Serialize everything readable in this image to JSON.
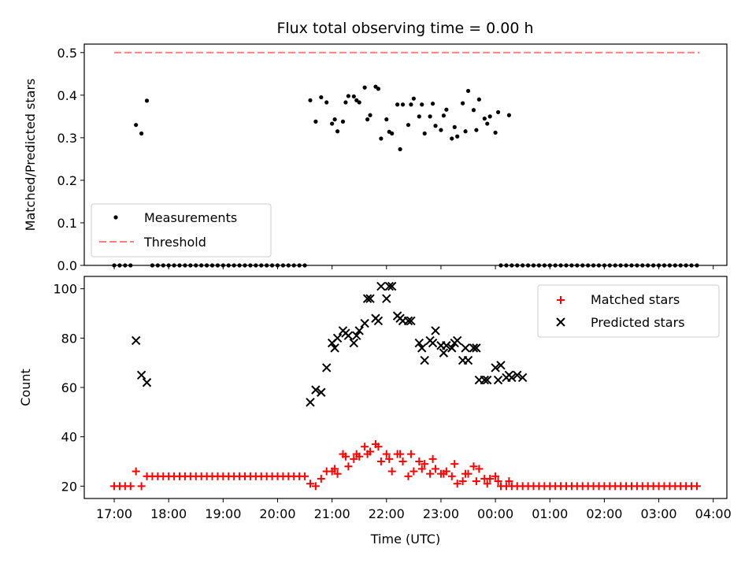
{
  "chart_data": [
    {
      "type": "scatter",
      "title": "Flux total observing time = 0.00 h",
      "xlabel": "",
      "ylabel": "Matched/Predicted stars",
      "ylim": [
        0,
        0.52
      ],
      "yticks": [
        "0.0",
        "0.1",
        "0.2",
        "0.3",
        "0.4",
        "0.5"
      ],
      "legend_position": "lower-left",
      "threshold": {
        "name": "Threshold",
        "value": 0.5,
        "x_start": 17.0,
        "x_end": 27.75,
        "color": "#ff7f7f"
      },
      "series": [
        {
          "name": "Measurements",
          "color": "#000000",
          "x": [
            17.0,
            17.1,
            17.2,
            17.3,
            17.4,
            17.5,
            17.6,
            17.7,
            17.8,
            17.9,
            18.0,
            18.1,
            18.2,
            18.3,
            18.4,
            18.5,
            18.6,
            18.7,
            18.8,
            18.9,
            19.0,
            19.1,
            19.2,
            19.3,
            19.4,
            19.5,
            19.6,
            19.7,
            19.8,
            19.9,
            20.0,
            20.1,
            20.2,
            20.3,
            20.4,
            20.5,
            20.6,
            20.7,
            20.8,
            20.9,
            21.0,
            21.1,
            21.2,
            21.3,
            21.4,
            21.5,
            21.6,
            21.7,
            21.8,
            21.9,
            22.0,
            22.1,
            22.2,
            22.3,
            22.4,
            22.5,
            22.6,
            22.7,
            22.8,
            22.9,
            23.0,
            23.1,
            23.2,
            23.3,
            23.4,
            23.5,
            23.6,
            23.7,
            23.8,
            23.9,
            24.0,
            24.1,
            24.2,
            24.3,
            24.4,
            24.5,
            24.6,
            24.7,
            24.8,
            24.9,
            25.0,
            25.1,
            25.2,
            25.3,
            25.4,
            25.5,
            25.6,
            25.7,
            25.8,
            25.9,
            26.0,
            26.1,
            26.2,
            26.3,
            26.4,
            26.5,
            26.6,
            26.7,
            26.8,
            26.9,
            27.0,
            27.1,
            27.2,
            27.3,
            27.4,
            27.5,
            27.6,
            27.7,
            21.05,
            21.25,
            21.45,
            21.65,
            21.85,
            22.05,
            22.25,
            22.45,
            22.65,
            22.85,
            23.05,
            23.25,
            23.45,
            23.65,
            23.85,
            24.05,
            24.25
          ],
          "y": [
            0,
            0,
            0,
            0,
            0.33,
            0.31,
            0.387,
            0,
            0,
            0,
            0,
            0,
            0,
            0,
            0,
            0,
            0,
            0,
            0,
            0,
            0,
            0,
            0,
            0,
            0,
            0,
            0,
            0,
            0,
            0,
            0,
            0,
            0,
            0,
            0,
            0,
            0.388,
            0.338,
            0.395,
            0.383,
            0.333,
            0.315,
            0.338,
            0.398,
            0.397,
            0.383,
            0.418,
            0.353,
            0.42,
            0.298,
            0.343,
            0.31,
            0.378,
            0.378,
            0.33,
            0.392,
            0.35,
            0.31,
            0.35,
            0.328,
            0.318,
            0.366,
            0.298,
            0.303,
            0.381,
            0.41,
            0.365,
            0.39,
            0.345,
            0.35,
            0.312,
            0,
            0,
            0,
            0,
            0,
            0,
            0,
            0,
            0,
            0,
            0,
            0,
            0,
            0,
            0,
            0,
            0,
            0,
            0,
            0,
            0,
            0,
            0,
            0,
            0,
            0,
            0,
            0,
            0,
            0,
            0,
            0,
            0,
            0,
            0,
            0,
            0,
            0.343,
            0.383,
            0.388,
            0.343,
            0.415,
            0.314,
            0.273,
            0.378,
            0.378,
            0.38,
            0.352,
            0.325,
            0.315,
            0.318,
            0.333,
            0.36,
            0.353
          ]
        }
      ]
    },
    {
      "type": "scatter",
      "title": "",
      "xlabel": "Time (UTC)",
      "ylabel": "Count",
      "ylim": [
        15,
        105
      ],
      "yticks": [
        "20",
        "40",
        "60",
        "80",
        "100"
      ],
      "xlim": [
        16.45,
        28.25
      ],
      "xticks": [
        "17:00",
        "18:00",
        "19:00",
        "20:00",
        "21:00",
        "22:00",
        "23:00",
        "00:00",
        "01:00",
        "02:00",
        "03:00",
        "04:00"
      ],
      "legend_position": "top-right",
      "series": [
        {
          "name": "Matched stars",
          "color": "#ff0000",
          "marker": "plus",
          "x": [
            17.0,
            17.1,
            17.2,
            17.3,
            17.4,
            17.5,
            17.6,
            17.7,
            17.8,
            17.9,
            18.0,
            18.1,
            18.2,
            18.3,
            18.4,
            18.5,
            18.6,
            18.7,
            18.8,
            18.9,
            19.0,
            19.1,
            19.2,
            19.3,
            19.4,
            19.5,
            19.6,
            19.7,
            19.8,
            19.9,
            20.0,
            20.1,
            20.2,
            20.3,
            20.4,
            20.5,
            20.6,
            20.7,
            20.8,
            20.9,
            21.0,
            21.1,
            21.2,
            21.3,
            21.4,
            21.5,
            21.6,
            21.7,
            21.8,
            21.9,
            22.0,
            22.1,
            22.2,
            22.3,
            22.4,
            22.5,
            22.6,
            22.7,
            22.8,
            22.9,
            23.0,
            23.1,
            23.2,
            23.3,
            23.4,
            23.5,
            23.6,
            23.7,
            23.8,
            23.9,
            24.0,
            24.1,
            24.2,
            24.3,
            24.4,
            24.5,
            24.6,
            24.7,
            24.8,
            24.9,
            25.0,
            25.1,
            25.2,
            25.3,
            25.4,
            25.5,
            25.6,
            25.7,
            25.8,
            25.9,
            26.0,
            26.1,
            26.2,
            26.3,
            26.4,
            26.5,
            26.6,
            26.7,
            26.8,
            26.9,
            27.0,
            27.1,
            27.2,
            27.3,
            27.4,
            27.5,
            27.6,
            27.7,
            21.05,
            21.25,
            21.45,
            21.65,
            21.85,
            22.05,
            22.25,
            22.45,
            22.65,
            22.85,
            23.05,
            23.25,
            23.45,
            23.65,
            23.85,
            24.05,
            24.25
          ],
          "y": [
            20,
            20,
            20,
            20,
            26,
            20,
            24,
            24,
            24,
            24,
            24,
            24,
            24,
            24,
            24,
            24,
            24,
            24,
            24,
            24,
            24,
            24,
            24,
            24,
            24,
            24,
            24,
            24,
            24,
            24,
            24,
            24,
            24,
            24,
            24,
            24,
            21,
            20,
            23,
            26,
            26,
            25,
            33,
            28,
            31,
            32,
            36,
            34,
            37,
            30,
            33,
            26,
            33,
            30,
            24,
            26,
            30,
            29,
            25,
            27,
            25,
            26,
            24,
            21,
            22,
            25,
            28,
            27,
            23,
            23,
            24,
            20,
            20,
            20,
            20,
            20,
            20,
            20,
            20,
            20,
            20,
            20,
            20,
            20,
            20,
            20,
            20,
            20,
            20,
            20,
            20,
            20,
            20,
            20,
            20,
            20,
            20,
            20,
            20,
            20,
            20,
            20,
            20,
            20,
            20,
            20,
            20,
            20,
            27,
            32,
            33,
            33,
            36,
            31,
            33,
            33,
            27,
            31,
            25,
            29,
            25,
            22,
            21,
            22,
            22
          ]
        },
        {
          "name": "Predicted stars",
          "color": "#000000",
          "marker": "x",
          "x": [
            17.4,
            17.5,
            17.6,
            20.6,
            20.7,
            20.8,
            20.9,
            21.0,
            21.05,
            21.1,
            21.2,
            21.25,
            21.3,
            21.4,
            21.45,
            21.5,
            21.6,
            21.65,
            21.7,
            21.8,
            21.85,
            21.9,
            22.0,
            22.05,
            22.1,
            22.2,
            22.25,
            22.3,
            22.4,
            22.45,
            22.6,
            22.65,
            22.7,
            22.8,
            22.85,
            22.9,
            23.0,
            23.05,
            23.1,
            23.2,
            23.25,
            23.3,
            23.4,
            23.45,
            23.5,
            23.6,
            23.65,
            23.7,
            23.8,
            23.85,
            24.0,
            24.05,
            24.1,
            24.2,
            24.25,
            24.3,
            24.4,
            24.5
          ],
          "y": [
            79,
            65,
            62,
            54,
            59,
            58,
            68,
            78,
            76,
            80,
            83,
            82,
            81,
            78,
            81,
            83,
            86,
            96,
            96,
            88,
            87,
            101,
            96,
            101,
            101,
            89,
            88,
            87,
            87,
            87,
            78,
            76,
            71,
            79,
            78,
            83,
            77,
            74,
            77,
            76,
            78,
            79,
            71,
            76,
            71,
            76,
            76,
            63,
            63,
            63,
            68,
            63,
            69,
            64,
            65,
            64,
            65,
            64
          ]
        }
      ]
    }
  ]
}
